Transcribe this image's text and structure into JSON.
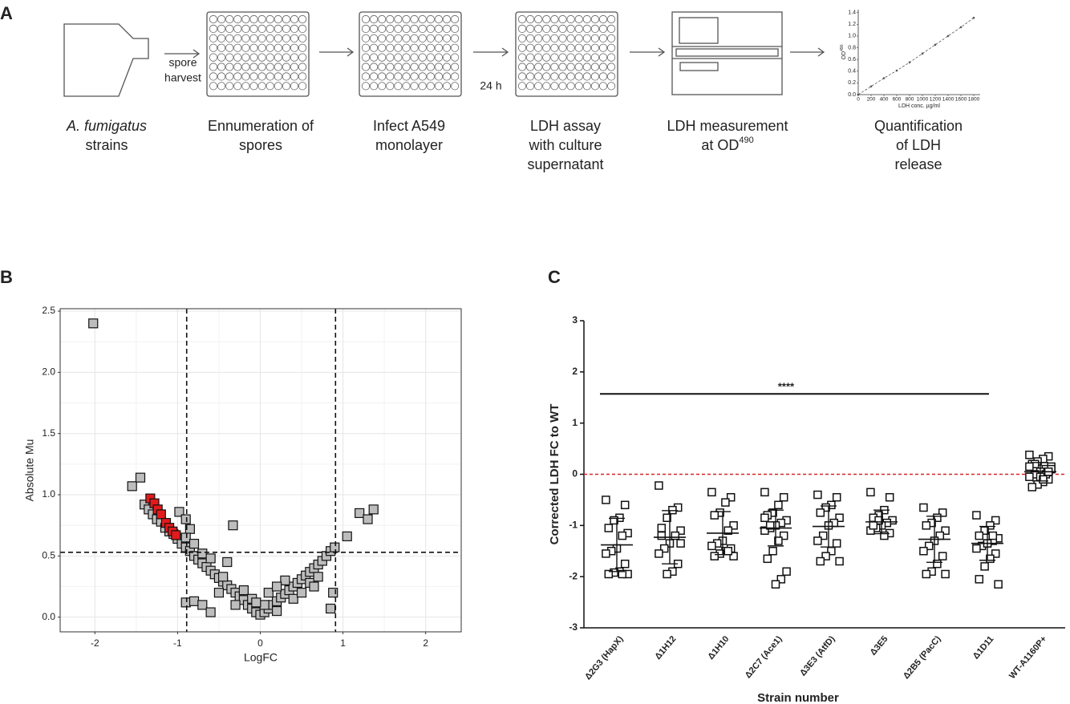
{
  "panel_labels": [
    "A",
    "B",
    "C"
  ],
  "workflow": {
    "arrow_labels": [
      [
        "spore",
        "harvest"
      ],
      [
        "24 h"
      ]
    ],
    "steps": [
      {
        "lines": [
          "A. fumigatus",
          "strains"
        ]
      },
      {
        "lines": [
          "Ennumeration of",
          "spores"
        ]
      },
      {
        "lines": [
          "Infect A549",
          "monolayer"
        ]
      },
      {
        "lines": [
          "LDH assay",
          "with culture",
          "supernatant"
        ]
      },
      {
        "lines": [
          "LDH measurement",
          "at OD"
        ],
        "sup": "490"
      },
      {
        "lines": [
          "Quantification",
          "of LDH",
          "release"
        ]
      }
    ]
  },
  "chart_data": [
    {
      "type": "line",
      "xlabel": "LDH conc. µg/ml",
      "ylabel": "OD",
      "ylabel_sup": "490",
      "xlim": [
        0,
        1900
      ],
      "ylim": [
        0,
        1.45
      ],
      "xticks": [
        0,
        200,
        400,
        600,
        800,
        1000,
        1200,
        1400,
        1600,
        1800
      ],
      "yticks": [
        {
          "value": 0,
          "label": "0.0"
        },
        {
          "value": 0.2,
          "label": "0.2"
        },
        {
          "value": 0.4,
          "label": "0.4"
        },
        {
          "value": 0.6,
          "label": "0.6"
        },
        {
          "value": 0.8,
          "label": "0.8"
        },
        {
          "value": 1.0,
          "label": "1.0"
        },
        {
          "value": 1.2,
          "label": "1.2"
        },
        {
          "value": 1.4,
          "label": "1.4"
        }
      ],
      "series": [
        {
          "color": "#555555",
          "x": [
            0,
            200,
            400,
            600,
            800,
            1000,
            1200,
            1400,
            1600,
            1800
          ],
          "values": [
            0.0,
            0.14,
            0.28,
            0.41,
            0.55,
            0.7,
            0.85,
            1.0,
            1.15,
            1.31
          ]
        }
      ]
    },
    {
      "type": "scatter",
      "xlabel": "LogFC",
      "ylabel": "Absolute Mu",
      "xlim": [
        -2.42,
        2.43
      ],
      "ylim": [
        -0.12,
        2.52
      ],
      "xticks": [
        -2,
        -1,
        0,
        1,
        2
      ],
      "yticks": [
        {
          "value": 0,
          "label": "0.0"
        },
        {
          "value": 0.5,
          "label": "0.5"
        },
        {
          "value": 1.0,
          "label": "1.0"
        },
        {
          "value": 1.5,
          "label": "1.5"
        },
        {
          "value": 2.0,
          "label": "2.0"
        },
        {
          "value": 2.5,
          "label": "2.5"
        }
      ],
      "grid": true,
      "vlines": [
        -0.89,
        0.91
      ],
      "hline": 0.53,
      "series": [
        {
          "color": "#bdbdbd",
          "x": [
            -2.02,
            -1.55,
            -1.45,
            -1.4,
            -1.35,
            -1.3,
            -1.25,
            -1.2,
            -1.15,
            -1.1,
            -1.05,
            -1.0,
            -0.95,
            -0.9,
            -0.85,
            -0.8,
            -0.75,
            -0.7,
            -0.65,
            -0.6,
            -0.55,
            -0.5,
            -0.45,
            -0.4,
            -0.35,
            -0.3,
            -0.25,
            -0.2,
            -0.15,
            -0.1,
            -0.05,
            0.0,
            0.05,
            0.1,
            0.15,
            0.2,
            0.25,
            0.3,
            0.35,
            0.4,
            0.45,
            0.5,
            0.55,
            0.6,
            0.65,
            0.7,
            0.75,
            0.8,
            0.85,
            0.9,
            -0.98,
            -0.9,
            -0.85,
            -0.9,
            -0.8,
            -0.7,
            -0.6,
            -0.4,
            -0.33,
            -0.5,
            -0.3,
            -0.2,
            -0.1,
            0.1,
            0.2,
            0.3,
            0.4,
            0.5,
            0.6,
            0.7,
            0.2,
            1.05,
            1.2,
            1.3,
            1.37,
            -0.9,
            -0.8,
            -0.7,
            -0.6,
            0.85,
            0.88,
            -0.45,
            0.05,
            -0.05,
            0.65
          ],
          "values": [
            2.4,
            1.07,
            1.14,
            0.92,
            0.88,
            0.84,
            0.8,
            0.78,
            0.73,
            0.7,
            0.68,
            0.64,
            0.6,
            0.57,
            0.54,
            0.5,
            0.47,
            0.44,
            0.41,
            0.38,
            0.35,
            0.32,
            0.29,
            0.26,
            0.23,
            0.2,
            0.17,
            0.14,
            0.1,
            0.07,
            0.04,
            0.02,
            0.04,
            0.07,
            0.1,
            0.13,
            0.16,
            0.19,
            0.22,
            0.25,
            0.28,
            0.31,
            0.34,
            0.37,
            0.4,
            0.43,
            0.46,
            0.5,
            0.54,
            0.57,
            0.86,
            0.8,
            0.72,
            0.65,
            0.6,
            0.52,
            0.48,
            0.45,
            0.75,
            0.2,
            0.1,
            0.22,
            0.15,
            0.2,
            0.05,
            0.3,
            0.15,
            0.2,
            0.28,
            0.33,
            0.25,
            0.66,
            0.85,
            0.8,
            0.88,
            0.12,
            0.13,
            0.1,
            0.04,
            0.07,
            0.2,
            0.33,
            0.1,
            0.12,
            0.25
          ]
        },
        {
          "color": "#e31a1c",
          "x": [
            -1.33,
            -1.28,
            -1.24,
            -1.2,
            -1.14,
            -1.1,
            -1.06,
            -1.02
          ],
          "values": [
            0.97,
            0.93,
            0.88,
            0.84,
            0.77,
            0.73,
            0.7,
            0.67
          ]
        }
      ]
    },
    {
      "type": "strip",
      "xlabel": "Strain number",
      "ylabel": "Corrected LDH FC to WT",
      "ylim": [
        -3,
        3
      ],
      "yticks": [
        -3,
        -2,
        -1,
        0,
        1,
        2,
        3
      ],
      "categories": [
        "Δ2G3 (HapX)",
        "Δ1H12",
        "Δ1H10",
        "Δ2C7 (Ace1)",
        "Δ3E3 (AtfD)",
        "Δ3E5",
        "Δ2B5 (PacC)",
        "Δ1D11",
        "WT-A1160P+"
      ],
      "values": [
        [
          -0.5,
          -0.6,
          -0.85,
          -0.9,
          -1.05,
          -1.15,
          -1.2,
          -1.45,
          -1.5,
          -1.55,
          -1.75,
          -1.9,
          -1.92,
          -1.95,
          -1.95,
          -1.95
        ],
        [
          -0.22,
          -0.65,
          -0.7,
          -0.85,
          -1.05,
          -1.1,
          -1.2,
          -1.35,
          -1.45,
          -1.55,
          -1.75,
          -1.9,
          -1.95,
          -1.2,
          -1.35
        ],
        [
          -0.35,
          -0.45,
          -0.55,
          -0.75,
          -0.8,
          -1.0,
          -1.1,
          -1.3,
          -1.35,
          -1.4,
          -1.45,
          -1.5,
          -1.55,
          -1.6,
          -1.6,
          -1.5
        ],
        [
          -0.35,
          -0.45,
          -0.6,
          -0.75,
          -0.8,
          -0.9,
          -0.95,
          -1.0,
          -1.05,
          -1.1,
          -1.2,
          -1.3,
          -1.5,
          -1.65,
          -1.9,
          -2.05,
          -2.15,
          -1.0,
          -0.85
        ],
        [
          -0.4,
          -0.45,
          -0.6,
          -0.65,
          -0.75,
          -0.85,
          -0.95,
          -1.0,
          -1.2,
          -1.3,
          -1.35,
          -1.5,
          -1.6,
          -1.7,
          -1.7
        ],
        [
          -0.35,
          -0.45,
          -0.7,
          -0.8,
          -0.85,
          -0.9,
          -0.95,
          -1.0,
          -1.05,
          -1.1,
          -1.15,
          -1.2,
          -0.9,
          -1.0
        ],
        [
          -0.65,
          -0.75,
          -0.85,
          -0.95,
          -1.0,
          -1.1,
          -1.2,
          -1.3,
          -1.4,
          -1.5,
          -1.6,
          -1.75,
          -1.9,
          -1.95,
          -1.95
        ],
        [
          -0.8,
          -0.9,
          -1.0,
          -1.1,
          -1.2,
          -1.25,
          -1.3,
          -1.35,
          -1.4,
          -1.45,
          -1.55,
          -1.65,
          -1.8,
          -2.05,
          -2.15,
          -1.2,
          -1.35
        ],
        [
          0.38,
          0.35,
          0.3,
          0.25,
          0.2,
          0.15,
          0.1,
          0.05,
          0.0,
          -0.05,
          -0.1,
          -0.15,
          -0.2,
          -0.25,
          0.1,
          0.0,
          -0.05,
          0.2,
          0.15,
          0.05,
          -0.1
        ]
      ],
      "means": [
        -1.38,
        -1.23,
        -1.15,
        -1.05,
        -1.02,
        -0.93,
        -1.27,
        -1.35,
        0.05
      ],
      "sd": [
        0.52,
        0.52,
        0.42,
        0.35,
        0.4,
        0.23,
        0.45,
        0.33,
        0.18
      ],
      "reference_line": 0,
      "reference_color": "#d62728",
      "significance": {
        "label": "****",
        "y": 1.57,
        "color": "#d62728"
      }
    }
  ]
}
